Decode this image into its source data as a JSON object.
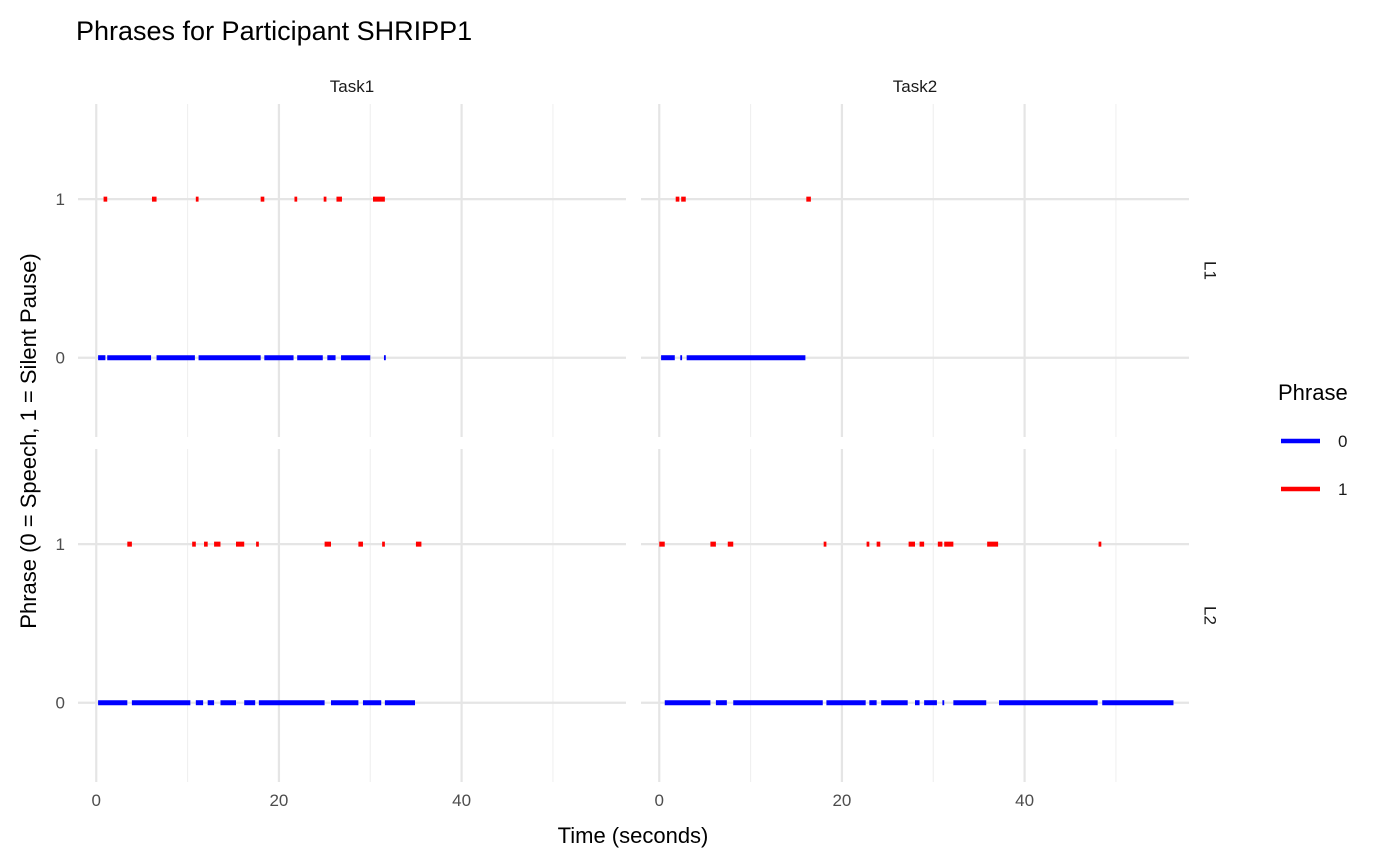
{
  "chart_data": {
    "type": "line",
    "title": "Phrases for Participant SHRIPP1",
    "xlabel": "Time (seconds)",
    "ylabel": "Phrase (0 = Speech, 1 = Silent Pause)",
    "facet_columns": [
      "Task1",
      "Task2"
    ],
    "facet_rows": [
      "L1",
      "L2"
    ],
    "xlim": [
      -2,
      58
    ],
    "ylim": [
      -0.5,
      1.6
    ],
    "x_ticks": [
      0,
      20,
      40
    ],
    "y_ticks": [
      0,
      1
    ],
    "grid": true,
    "legend": {
      "title": "Phrase",
      "position": "right",
      "entries": [
        {
          "label": "0",
          "color": "#0000ff"
        },
        {
          "label": "1",
          "color": "#ff0000"
        }
      ]
    },
    "panels": [
      {
        "column": "Task1",
        "row": "L1",
        "series": [
          {
            "phrase": 0,
            "color": "#0000ff",
            "segments": [
              [
                0.2,
                1.0
              ],
              [
                1.2,
                6.0
              ],
              [
                6.6,
                10.8
              ],
              [
                11.2,
                18.0
              ],
              [
                18.4,
                21.6
              ],
              [
                22.0,
                24.8
              ],
              [
                25.3,
                26.2
              ],
              [
                26.8,
                30.0
              ],
              [
                31.5,
                31.7
              ]
            ]
          },
          {
            "phrase": 1,
            "color": "#ff0000",
            "segments": [
              [
                0.8,
                1.2
              ],
              [
                6.1,
                6.6
              ],
              [
                10.9,
                11.2
              ],
              [
                18.0,
                18.4
              ],
              [
                21.7,
                22.0
              ],
              [
                24.9,
                25.2
              ],
              [
                26.3,
                26.9
              ],
              [
                30.3,
                31.6
              ]
            ]
          }
        ]
      },
      {
        "column": "Task2",
        "row": "L1",
        "series": [
          {
            "phrase": 0,
            "color": "#0000ff",
            "segments": [
              [
                0.2,
                1.7
              ],
              [
                2.3,
                2.5
              ],
              [
                3.0,
                16.0
              ]
            ]
          },
          {
            "phrase": 1,
            "color": "#ff0000",
            "segments": [
              [
                1.8,
                2.2
              ],
              [
                2.4,
                2.9
              ],
              [
                16.1,
                16.6
              ]
            ]
          }
        ]
      },
      {
        "column": "Task1",
        "row": "L2",
        "series": [
          {
            "phrase": 0,
            "color": "#0000ff",
            "segments": [
              [
                0.2,
                3.4
              ],
              [
                3.9,
                10.3
              ],
              [
                10.9,
                11.7
              ],
              [
                12.2,
                12.9
              ],
              [
                13.6,
                15.3
              ],
              [
                16.2,
                17.4
              ],
              [
                17.8,
                25.0
              ],
              [
                25.7,
                28.7
              ],
              [
                29.2,
                31.2
              ],
              [
                31.6,
                34.9
              ]
            ]
          },
          {
            "phrase": 1,
            "color": "#ff0000",
            "segments": [
              [
                3.4,
                3.9
              ],
              [
                10.5,
                10.9
              ],
              [
                11.8,
                12.2
              ],
              [
                12.9,
                13.6
              ],
              [
                15.3,
                16.2
              ],
              [
                17.5,
                17.8
              ],
              [
                25.0,
                25.7
              ],
              [
                28.7,
                29.2
              ],
              [
                31.3,
                31.6
              ],
              [
                35.0,
                35.6
              ]
            ]
          }
        ]
      },
      {
        "column": "Task2",
        "row": "L2",
        "series": [
          {
            "phrase": 0,
            "color": "#0000ff",
            "segments": [
              [
                0.6,
                5.6
              ],
              [
                6.2,
                7.4
              ],
              [
                8.1,
                17.9
              ],
              [
                18.3,
                22.6
              ],
              [
                23.0,
                23.8
              ],
              [
                24.3,
                27.2
              ],
              [
                28.0,
                28.5
              ],
              [
                29.0,
                30.4
              ],
              [
                31.0,
                31.2
              ],
              [
                32.2,
                35.8
              ],
              [
                37.2,
                48.0
              ],
              [
                48.5,
                56.3
              ]
            ]
          },
          {
            "phrase": 1,
            "color": "#ff0000",
            "segments": [
              [
                0.0,
                0.6
              ],
              [
                5.6,
                6.2
              ],
              [
                7.5,
                8.1
              ],
              [
                18.0,
                18.3
              ],
              [
                22.7,
                23.0
              ],
              [
                23.8,
                24.2
              ],
              [
                27.3,
                28.0
              ],
              [
                28.5,
                29.0
              ],
              [
                30.5,
                31.0
              ],
              [
                31.2,
                32.2
              ],
              [
                35.9,
                37.1
              ],
              [
                48.1,
                48.4
              ]
            ]
          }
        ]
      }
    ]
  }
}
